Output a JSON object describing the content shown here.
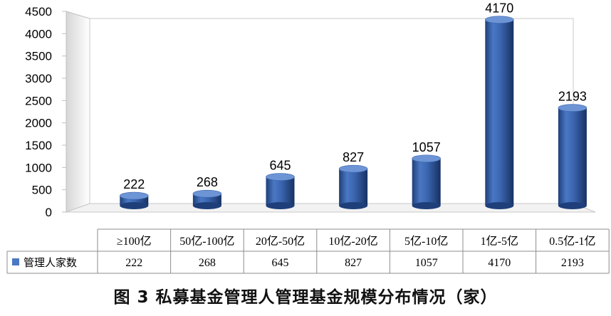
{
  "chart_data": {
    "type": "bar",
    "categories": [
      "≥100亿",
      "50亿-100亿",
      "20亿-50亿",
      "10亿-20亿",
      "5亿-10亿",
      "1亿-5亿",
      "0.5亿-1亿"
    ],
    "series": [
      {
        "name": "管理人家数",
        "values": [
          222,
          268,
          645,
          827,
          1057,
          4170,
          2193
        ],
        "color": "#4a78c4"
      }
    ],
    "ylim": [
      0,
      4500
    ],
    "yticks": [
      0,
      500,
      1000,
      1500,
      2000,
      2500,
      3000,
      3500,
      4000,
      4500
    ],
    "data_labels": true,
    "data_table": true,
    "legend": "data-table-left",
    "grid": false,
    "style": "3d-cylinder"
  },
  "caption": "图 3  私募基金管理人管理基金规模分布情况（家）"
}
